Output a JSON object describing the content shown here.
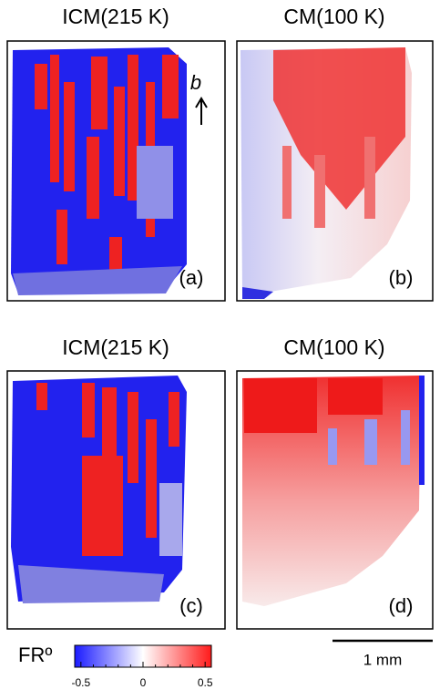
{
  "panels": [
    {
      "title": "ICM(215 K)",
      "label": "(a)"
    },
    {
      "title": "CM(100 K)",
      "label": "(b)"
    },
    {
      "title": "ICM(215 K)",
      "label": "(c)"
    },
    {
      "title": "CM(100 K)",
      "label": "(d)"
    }
  ],
  "axis_annotation": "b",
  "colorbar": {
    "label": "FRº",
    "range": [
      -0.55,
      0.55
    ],
    "ticks": [
      -0.5,
      0,
      0.5
    ],
    "minor_ticks": [
      -0.4,
      -0.3,
      -0.2,
      -0.1,
      0.1,
      0.2,
      0.3,
      0.4
    ]
  },
  "scale_bar": {
    "label": "1 mm"
  }
}
